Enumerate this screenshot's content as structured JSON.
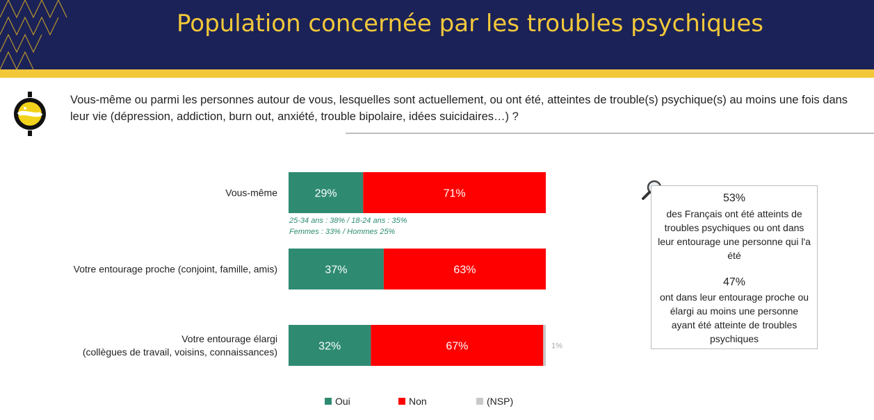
{
  "header": {
    "title": "Population concernée par les troubles psychiques"
  },
  "question": {
    "text": "Vous-même ou parmi les personnes autour de vous, lesquelles sont actuellement, ou ont été, atteintes de trouble(s) psychique(s) au moins une fois dans leur vie (dépression, addiction, burn out, anxiété, trouble bipolaire, idées suicidaires…) ?"
  },
  "colors": {
    "oui": "#2e8b72",
    "non": "#ff0000",
    "nsp": "#c8c8c8",
    "brand_navy": "#1b2258",
    "brand_yellow": "#f2c83a"
  },
  "chart_data": {
    "type": "bar",
    "orientation": "horizontal",
    "stacked": true,
    "categories": [
      "Vous-même",
      "Votre entourage proche (conjoint, famille, amis)",
      "Votre entourage élargi (collègues de travail, voisins, connaissances)"
    ],
    "category_lines": [
      [
        "Vous-même"
      ],
      [
        "Votre entourage proche (conjoint, famille, amis)"
      ],
      [
        "Votre entourage élargi",
        "(collègues de travail, voisins, connaissances)"
      ]
    ],
    "series": [
      {
        "name": "Oui",
        "values": [
          29,
          37,
          32
        ],
        "labels": [
          "29%",
          "37%",
          "32%"
        ]
      },
      {
        "name": "Non",
        "values": [
          71,
          63,
          67
        ],
        "labels": [
          "71%",
          "63%",
          "67%"
        ]
      },
      {
        "name": "(NSP)",
        "values": [
          0,
          0,
          1
        ],
        "labels": [
          "",
          "",
          "1%"
        ]
      }
    ],
    "annotations": [
      "25-34 ans : 38% / 18-24 ans : 35%",
      "Femmes : 33% / Hommes 25%"
    ],
    "xlim": [
      0,
      100
    ],
    "grid": false,
    "legend_position": "bottom"
  },
  "callout": {
    "value1": "53%",
    "text1": "des Français ont été atteints de troubles psychiques ou ont dans leur entourage une personne qui l'a été",
    "value2": "47%",
    "text2": "ont dans leur entourage proche ou élargi au moins une personne ayant été atteinte de troubles psychiques"
  }
}
